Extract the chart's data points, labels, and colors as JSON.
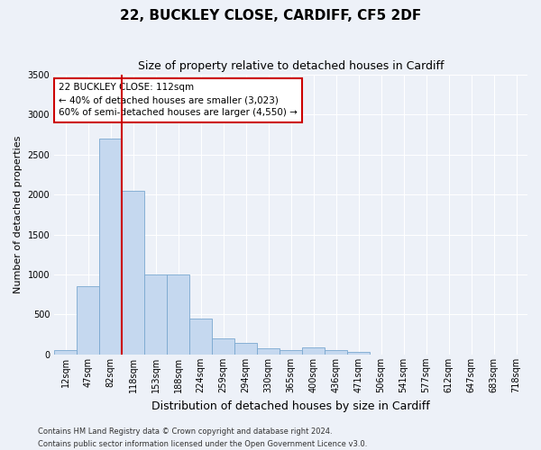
{
  "title1": "22, BUCKLEY CLOSE, CARDIFF, CF5 2DF",
  "title2": "Size of property relative to detached houses in Cardiff",
  "xlabel": "Distribution of detached houses by size in Cardiff",
  "ylabel": "Number of detached properties",
  "categories": [
    "12sqm",
    "47sqm",
    "82sqm",
    "118sqm",
    "153sqm",
    "188sqm",
    "224sqm",
    "259sqm",
    "294sqm",
    "330sqm",
    "365sqm",
    "400sqm",
    "436sqm",
    "471sqm",
    "506sqm",
    "541sqm",
    "577sqm",
    "612sqm",
    "647sqm",
    "683sqm",
    "718sqm"
  ],
  "values": [
    55,
    850,
    2700,
    2050,
    1000,
    1000,
    450,
    200,
    140,
    80,
    60,
    85,
    55,
    30,
    0,
    0,
    0,
    0,
    0,
    0,
    0
  ],
  "bar_color": "#c5d8ef",
  "bar_edge_color": "#7aa8d0",
  "vline_x_index": 2,
  "vline_color": "#cc0000",
  "annotation_text": "22 BUCKLEY CLOSE: 112sqm\n← 40% of detached houses are smaller (3,023)\n60% of semi-detached houses are larger (4,550) →",
  "annotation_box_color": "white",
  "annotation_box_edge_color": "#cc0000",
  "ylim": [
    0,
    3500
  ],
  "yticks": [
    0,
    500,
    1000,
    1500,
    2000,
    2500,
    3000,
    3500
  ],
  "footnote1": "Contains HM Land Registry data © Crown copyright and database right 2024.",
  "footnote2": "Contains public sector information licensed under the Open Government Licence v3.0.",
  "bg_color": "#edf1f8",
  "grid_color": "white",
  "title1_fontsize": 11,
  "title2_fontsize": 9,
  "ylabel_fontsize": 8,
  "xlabel_fontsize": 9,
  "tick_fontsize": 7,
  "footnote_fontsize": 6,
  "annot_fontsize": 7.5
}
